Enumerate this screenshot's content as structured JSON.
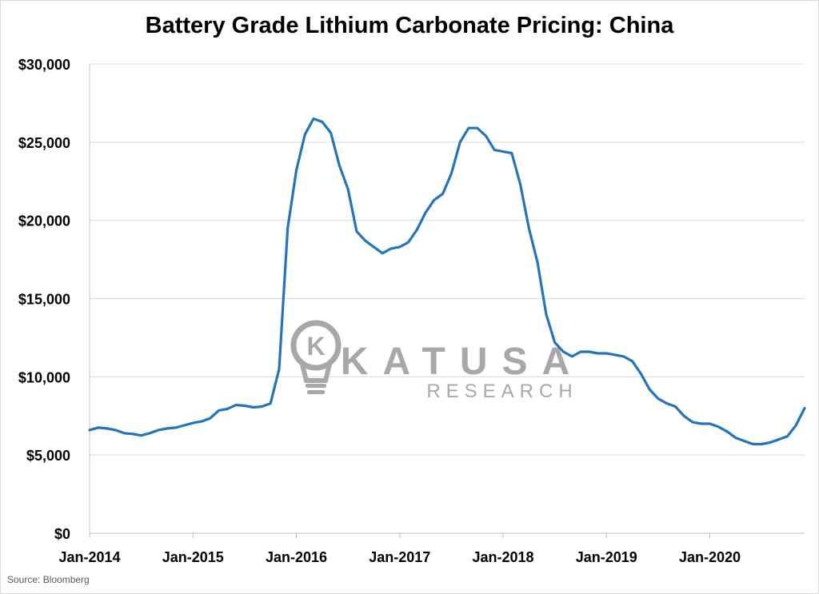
{
  "title": "Battery Grade Lithium Carbonate Pricing: China",
  "source": "Source: Bloomberg",
  "watermark": {
    "brand": "KATUSA",
    "sub": "RESEARCH",
    "monogram": "K",
    "color": "#9a9a9a"
  },
  "chart_data": {
    "type": "line",
    "title": "Battery Grade Lithium Carbonate Pricing: China",
    "xlabel": "",
    "ylabel": "",
    "ylim": [
      0,
      30000
    ],
    "yticks": [
      0,
      5000,
      10000,
      15000,
      20000,
      25000,
      30000
    ],
    "ytick_labels": [
      "$0",
      "$5,000",
      "$10,000",
      "$15,000",
      "$20,000",
      "$25,000",
      "$30,000"
    ],
    "xlim": [
      "2014-01",
      "2020-12"
    ],
    "xticks": [
      "2014-01",
      "2015-01",
      "2016-01",
      "2017-01",
      "2018-01",
      "2019-01",
      "2020-01"
    ],
    "xtick_labels": [
      "Jan-2014",
      "Jan-2015",
      "Jan-2016",
      "Jan-2017",
      "Jan-2018",
      "Jan-2019",
      "Jan-2020"
    ],
    "grid": "horizontal",
    "legend": "none",
    "line_color": "#2473bd",
    "series": [
      {
        "x": [
          "2014-01",
          "2014-02",
          "2014-03",
          "2014-04",
          "2014-05",
          "2014-06",
          "2014-07",
          "2014-08",
          "2014-09",
          "2014-10",
          "2014-11",
          "2014-12",
          "2015-01",
          "2015-02",
          "2015-03",
          "2015-04",
          "2015-05",
          "2015-06",
          "2015-07",
          "2015-08",
          "2015-09",
          "2015-10",
          "2015-11",
          "2015-12",
          "2016-01",
          "2016-02",
          "2016-03",
          "2016-04",
          "2016-05",
          "2016-06",
          "2016-07",
          "2016-08",
          "2016-09",
          "2016-10",
          "2016-11",
          "2016-12",
          "2017-01",
          "2017-02",
          "2017-03",
          "2017-04",
          "2017-05",
          "2017-06",
          "2017-07",
          "2017-08",
          "2017-09",
          "2017-10",
          "2017-11",
          "2017-12",
          "2018-01",
          "2018-02",
          "2018-03",
          "2018-04",
          "2018-05",
          "2018-06",
          "2018-07",
          "2018-08",
          "2018-09",
          "2018-10",
          "2018-11",
          "2018-12",
          "2019-01",
          "2019-02",
          "2019-03",
          "2019-04",
          "2019-05",
          "2019-06",
          "2019-07",
          "2019-08",
          "2019-09",
          "2019-10",
          "2019-11",
          "2019-12",
          "2020-01",
          "2020-02",
          "2020-03",
          "2020-04",
          "2020-05",
          "2020-06",
          "2020-07",
          "2020-08",
          "2020-09",
          "2020-10",
          "2020-11",
          "2020-12"
        ],
        "values": [
          6600,
          6750,
          6700,
          6600,
          6400,
          6350,
          6250,
          6400,
          6600,
          6700,
          6750,
          6900,
          7050,
          7150,
          7350,
          7850,
          7950,
          8200,
          8150,
          8050,
          8100,
          8300,
          10500,
          19500,
          23200,
          25500,
          26500,
          26300,
          25600,
          23500,
          22000,
          19300,
          18700,
          18300,
          17900,
          18200,
          18300,
          18600,
          19400,
          20500,
          21300,
          21700,
          23000,
          25000,
          25900,
          25900,
          25400,
          24500,
          24400,
          24300,
          22300,
          19500,
          17300,
          14000,
          12200,
          11600,
          11300,
          11600,
          11600,
          11500,
          11500,
          11400,
          11300,
          11000,
          10200,
          9200,
          8600,
          8300,
          8100,
          7500,
          7100,
          7000,
          7000,
          6800,
          6500,
          6100,
          5900,
          5700,
          5700,
          5800,
          6000,
          6200,
          6900,
          8000
        ]
      }
    ]
  }
}
